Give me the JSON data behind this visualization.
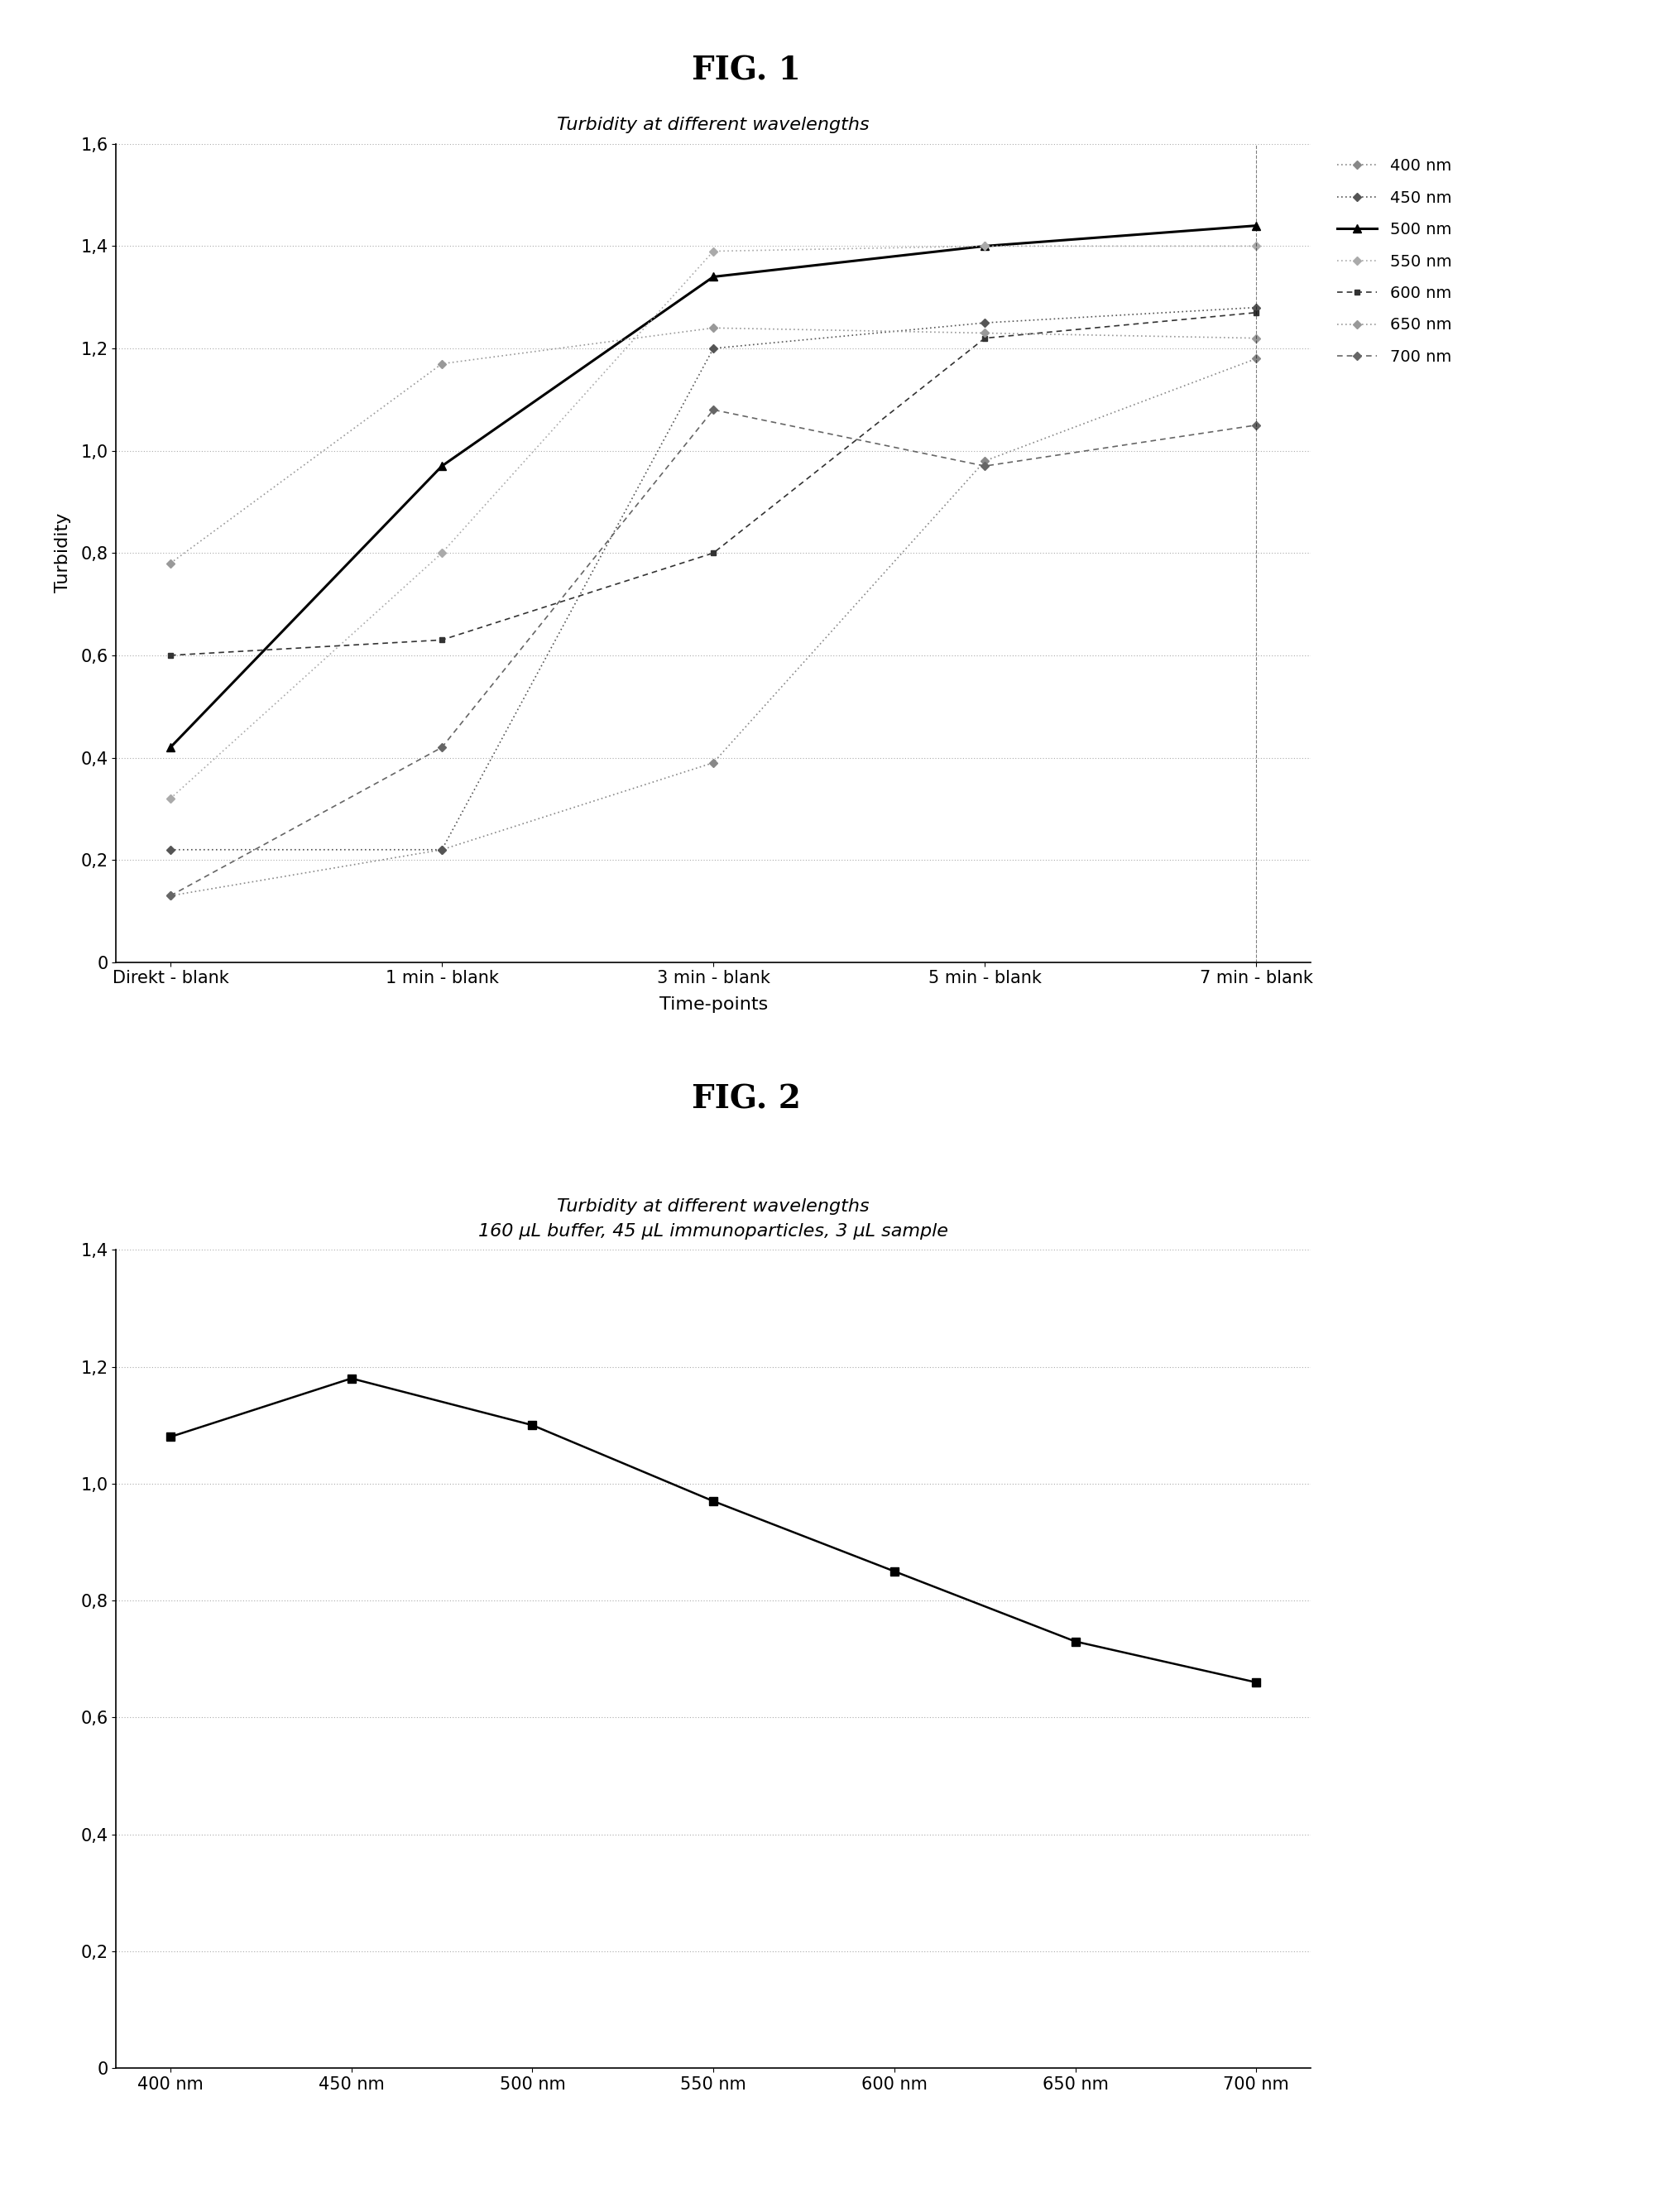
{
  "fig1_title": "Turbidity at different wavelengths",
  "fig1_xlabel": "Time-points",
  "fig1_ylabel": "Turbidity",
  "fig1_xticklabels": [
    "Direkt - blank",
    "1 min - blank",
    "3 min - blank",
    "5 min - blank",
    "7 min - blank"
  ],
  "fig1_ylim": [
    0,
    1.6
  ],
  "fig1_yticks": [
    0,
    0.2,
    0.4,
    0.6,
    0.8,
    1.0,
    1.2,
    1.4,
    1.6
  ],
  "fig1_series": [
    {
      "label": "400 nm",
      "values": [
        0.13,
        0.22,
        0.39,
        0.98,
        1.18
      ],
      "color": "#888888",
      "linestyle": "dotted",
      "marker": "D",
      "markersize": 5,
      "linewidth": 1.2
    },
    {
      "label": "450 nm",
      "values": [
        0.22,
        0.22,
        1.2,
        1.25,
        1.28
      ],
      "color": "#555555",
      "linestyle": "dotted",
      "marker": "D",
      "markersize": 5,
      "linewidth": 1.2
    },
    {
      "label": "500 nm",
      "values": [
        0.42,
        0.97,
        1.34,
        1.4,
        1.44
      ],
      "color": "#000000",
      "linestyle": "solid",
      "marker": "^",
      "markersize": 7,
      "linewidth": 2.2
    },
    {
      "label": "550 nm",
      "values": [
        0.32,
        0.8,
        1.39,
        1.4,
        1.4
      ],
      "color": "#aaaaaa",
      "linestyle": "dotted",
      "marker": "D",
      "markersize": 5,
      "linewidth": 1.2
    },
    {
      "label": "600 nm",
      "values": [
        0.6,
        0.63,
        0.8,
        1.22,
        1.27
      ],
      "color": "#333333",
      "linestyle": "dashed",
      "marker": "s",
      "markersize": 5,
      "linewidth": 1.2
    },
    {
      "label": "650 nm",
      "values": [
        0.78,
        1.17,
        1.24,
        1.23,
        1.22
      ],
      "color": "#999999",
      "linestyle": "dotted",
      "marker": "D",
      "markersize": 5,
      "linewidth": 1.2
    },
    {
      "label": "700 nm",
      "values": [
        0.13,
        0.42,
        1.08,
        0.97,
        1.05
      ],
      "color": "#666666",
      "linestyle": "dashed",
      "marker": "D",
      "markersize": 5,
      "linewidth": 1.2
    }
  ],
  "fig2_title": "Turbidity at different wavelengths",
  "fig2_subtitle": "160 μL buffer, 45 μL immunoparticles, 3 μL sample",
  "fig2_xticklabels": [
    "400 nm",
    "450 nm",
    "500 nm",
    "550 nm",
    "600 nm",
    "650 nm",
    "700 nm"
  ],
  "fig2_ylim": [
    0,
    1.4
  ],
  "fig2_yticks": [
    0,
    0.2,
    0.4,
    0.6,
    0.8,
    1.0,
    1.2,
    1.4
  ],
  "fig2_values": [
    1.08,
    1.18,
    1.1,
    0.97,
    0.85,
    0.73,
    0.66
  ],
  "fig2_color": "#000000",
  "fig2_marker": "s",
  "fig2_markersize": 7,
  "fig2_linewidth": 1.8,
  "fig1_label": "FIG. 1",
  "fig2_label": "FIG. 2",
  "background_color": "#ffffff",
  "grid_color": "#aaaaaa",
  "font_color": "#000000"
}
